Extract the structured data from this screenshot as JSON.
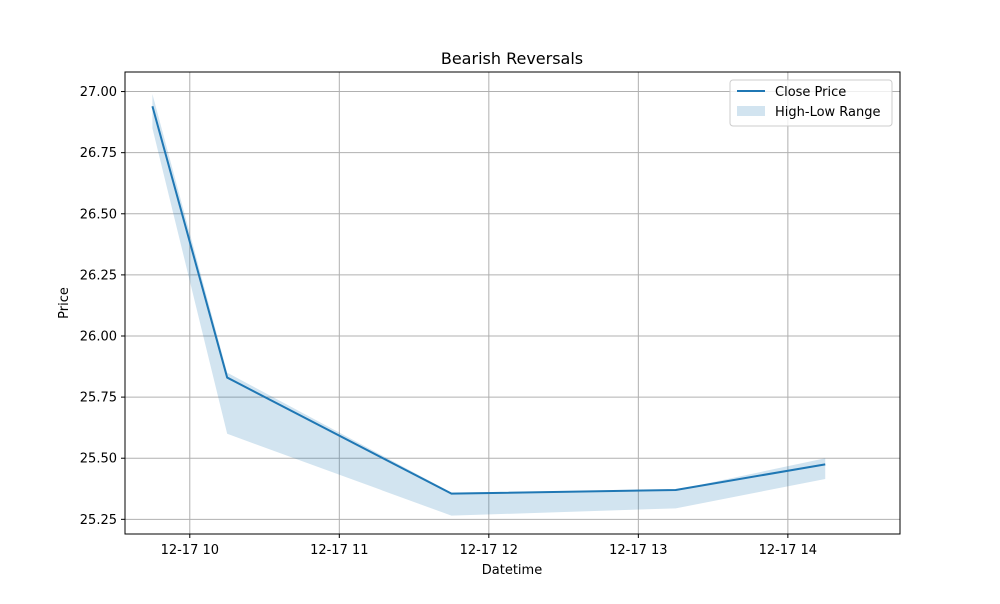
{
  "chart_data": {
    "type": "line",
    "title": "Bearish Reversals",
    "xlabel": "Datetime",
    "ylabel": "Price",
    "grid": true,
    "legend_position": "top-right",
    "x_tick_labels": [
      "12-17 10",
      "12-17 11",
      "12-17 12",
      "12-17 13",
      "12-17 14"
    ],
    "x_ticks": [
      "2024-12-17 10:00",
      "2024-12-17 11:00",
      "2024-12-17 12:00",
      "2024-12-17 13:00",
      "2024-12-17 14:00"
    ],
    "y_ticks": [
      25.25,
      25.5,
      25.75,
      26.0,
      26.25,
      26.5,
      26.75,
      27.0
    ],
    "y_tick_labels": [
      "25.25",
      "25.50",
      "25.75",
      "26.00",
      "26.25",
      "26.50",
      "26.75",
      "27.00"
    ],
    "ylim": [
      25.19,
      27.08
    ],
    "xlim": [
      "2024-12-17 09:34",
      "2024-12-17 14:45"
    ],
    "x": [
      "2024-12-17 09:45",
      "2024-12-17 10:15",
      "2024-12-17 11:45",
      "2024-12-17 13:15",
      "2024-12-17 14:15"
    ],
    "series": [
      {
        "name": "Close Price",
        "kind": "line",
        "color": "#1f77b4",
        "values": [
          26.94,
          25.83,
          25.355,
          25.37,
          25.475
        ]
      },
      {
        "name": "High-Low Range",
        "kind": "band",
        "color": "#1f77b4",
        "opacity": 0.2,
        "high": [
          26.99,
          25.85,
          25.36,
          25.37,
          25.5
        ],
        "low": [
          26.85,
          25.6,
          25.265,
          25.295,
          25.415
        ]
      }
    ]
  }
}
